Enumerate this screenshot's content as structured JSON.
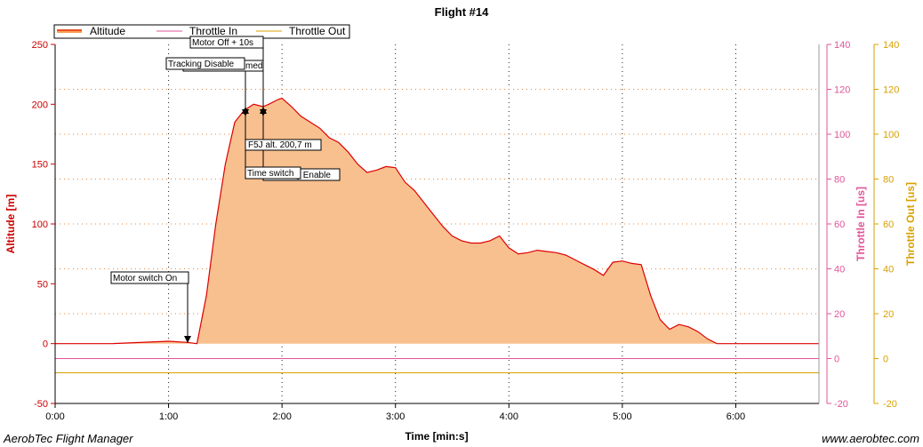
{
  "footer": {
    "app_name": "AerobTec Flight Manager",
    "url": "www.aerobtec.com"
  },
  "chart_data": {
    "type": "area",
    "title": "Flight #14",
    "xlabel": "Time [min:s]",
    "ylabel_left": "Altitude [m]",
    "ylabel_right1": "Throttle In [us]",
    "ylabel_right2": "Throttle Out [us]",
    "xlim": [
      0,
      404
    ],
    "ylim_left": [
      -50,
      250
    ],
    "ylim_right": [
      -20,
      140
    ],
    "x_ticks": [
      0,
      60,
      120,
      180,
      240,
      300,
      360
    ],
    "x_tick_labels": [
      "0:00",
      "1:00",
      "2:00",
      "3:00",
      "4:00",
      "5:00",
      "6:00"
    ],
    "y_left_ticks": [
      -50,
      0,
      50,
      100,
      150,
      200,
      250
    ],
    "y_right_ticks": [
      -20,
      0,
      20,
      40,
      60,
      80,
      100,
      120,
      140
    ],
    "grid": true,
    "legend_position": "top-left",
    "series": [
      {
        "name": "Altitude",
        "color": "#dd0000",
        "fill": "#f8c08f",
        "axis": "left",
        "x": [
          0,
          30,
          60,
          70,
          75,
          80,
          85,
          90,
          95,
          100,
          105,
          110,
          113,
          118,
          120,
          125,
          130,
          135,
          140,
          145,
          150,
          155,
          160,
          165,
          170,
          175,
          180,
          185,
          190,
          195,
          200,
          205,
          210,
          215,
          220,
          225,
          230,
          235,
          240,
          245,
          250,
          255,
          260,
          265,
          270,
          275,
          280,
          285,
          290,
          295,
          300,
          305,
          310,
          315,
          320,
          325,
          330,
          335,
          340,
          345,
          350,
          355,
          360,
          366,
          375,
          404
        ],
        "y": [
          0,
          0,
          2,
          1,
          0,
          40,
          100,
          150,
          185,
          195,
          200,
          198,
          200,
          204,
          205,
          198,
          190,
          185,
          180,
          172,
          168,
          160,
          150,
          143,
          145,
          148,
          147,
          135,
          128,
          118,
          108,
          98,
          90,
          86,
          84,
          84,
          86,
          90,
          80,
          75,
          76,
          78,
          77,
          76,
          74,
          70,
          66,
          62,
          57,
          68,
          69,
          67,
          66,
          40,
          20,
          12,
          16,
          14,
          10,
          4,
          0,
          0,
          0,
          0,
          0,
          0
        ]
      },
      {
        "name": "Throttle In",
        "color": "#e2559a",
        "axis": "right",
        "x": [
          0,
          404
        ],
        "y": [
          0,
          0
        ]
      },
      {
        "name": "Throttle Out",
        "color": "#d9a000",
        "axis": "right",
        "x": [
          0,
          404
        ],
        "y": [
          0,
          0
        ]
      }
    ],
    "annotations": [
      {
        "label": "Motor switch On",
        "x": 70,
        "y": 0
      },
      {
        "label": "Tracking Disable",
        "x": 101,
        "y": 198
      },
      {
        "label": "Motor Off + 10s",
        "x": 111,
        "y": 198
      },
      {
        "label": "F5J alt. 200,7 m",
        "x": 101,
        "y": 198
      },
      {
        "label": "Time switch",
        "x": 101,
        "y": 198
      },
      {
        "label": "Tracking Enable",
        "x": 111,
        "y": 198
      },
      {
        "label": "med",
        "x": 101,
        "y": 198
      }
    ]
  }
}
